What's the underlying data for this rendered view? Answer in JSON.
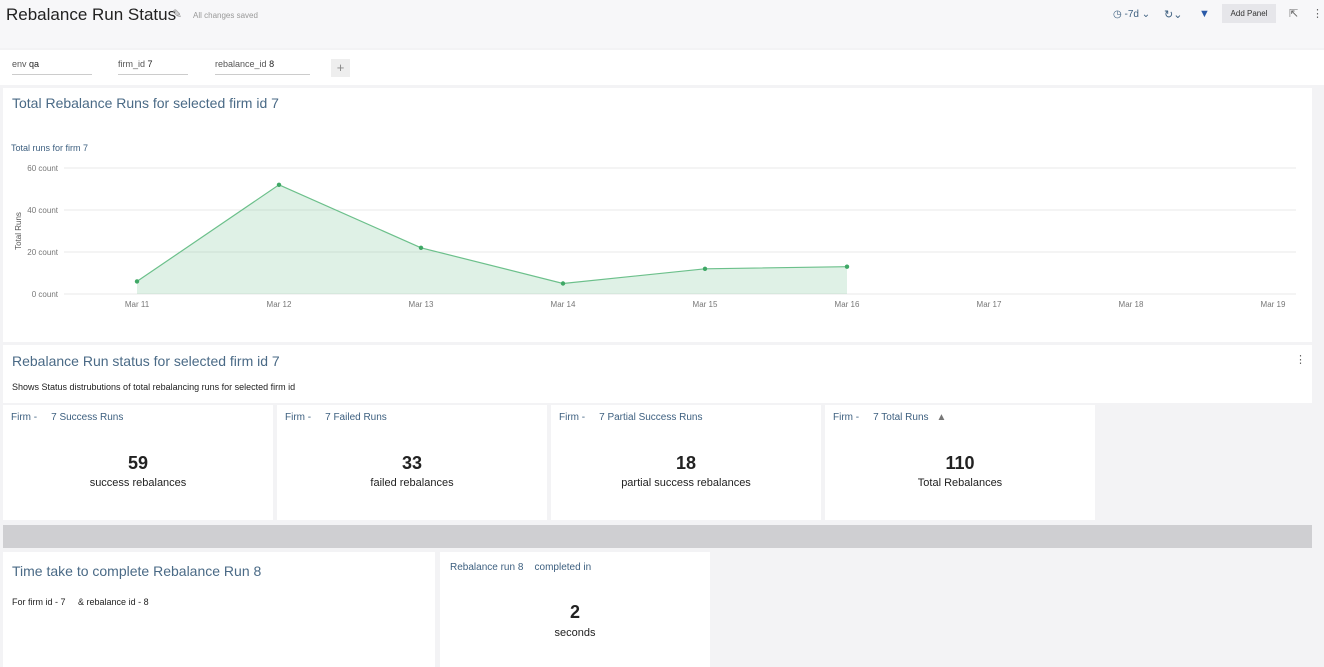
{
  "header": {
    "title": "Rebalance Run Status",
    "status": "All changes saved",
    "time_range": "-7d",
    "add_panel": "Add Panel"
  },
  "filters": [
    {
      "label": "env",
      "value": "qa"
    },
    {
      "label": "firm_id",
      "value": "7"
    },
    {
      "label": "rebalance_id",
      "value": "8"
    }
  ],
  "section1": {
    "title": "Total Rebalance Runs for selected firm id 7"
  },
  "chart_data": {
    "type": "area",
    "title": "Total runs for firm 7",
    "ylabel": "Total Runs",
    "categories": [
      "Mar 11",
      "Mar 12",
      "Mar 13",
      "Mar 14",
      "Mar 15",
      "Mar 16",
      "Mar 17",
      "Mar 18",
      "Mar 19"
    ],
    "values": [
      6,
      52,
      22,
      5,
      12,
      13,
      null,
      null,
      null
    ],
    "color": "#6cc08b",
    "ylim": [
      0,
      60
    ],
    "yticks": [
      {
        "value": 0,
        "label": "0 count"
      },
      {
        "value": 20,
        "label": "20 count"
      },
      {
        "value": 40,
        "label": "40 count"
      },
      {
        "value": 60,
        "label": "60 count"
      }
    ],
    "grid": true
  },
  "section2": {
    "title": "Rebalance Run status for selected firm id 7",
    "description": "Shows Status distrubutions of total rebalancing runs for selected firm id",
    "stats": [
      {
        "prefix": "Firm -",
        "header": "7 Success Runs",
        "value": "59",
        "label": "success rebalances"
      },
      {
        "prefix": "Firm -",
        "header": "7 Failed Runs",
        "value": "33",
        "label": "failed rebalances"
      },
      {
        "prefix": "Firm -",
        "header": "7 Partial Success Runs",
        "value": "18",
        "label": "partial success rebalances"
      },
      {
        "prefix": "Firm -",
        "header": "7 Total Runs",
        "value": "110",
        "label": "Total Rebalances"
      }
    ]
  },
  "section3": {
    "title": "Time take to complete Rebalance Run 8",
    "description": [
      "For firm id - 7",
      "& rebalance id - 8"
    ],
    "stat": {
      "prefix": "Rebalance run 8",
      "header": "completed in",
      "value": "2",
      "label": "seconds"
    }
  }
}
